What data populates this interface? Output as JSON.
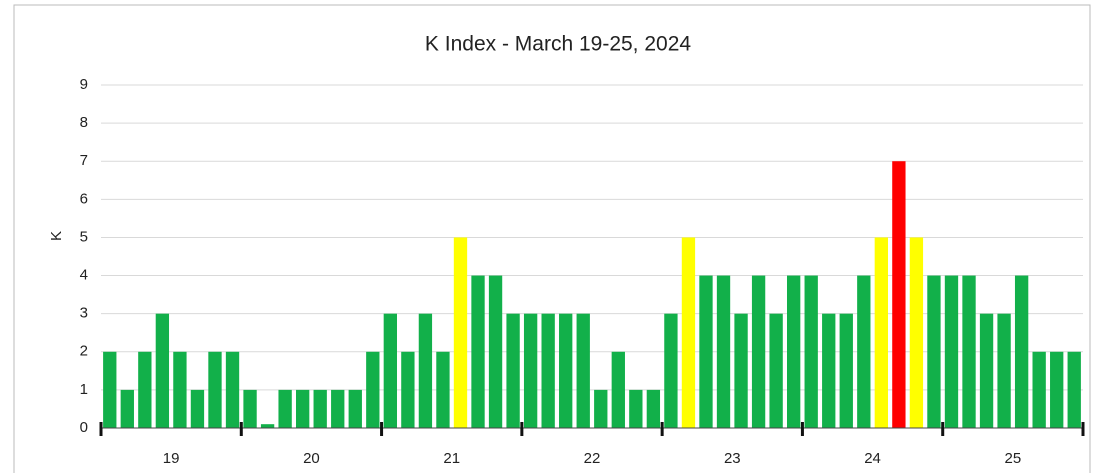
{
  "chart_data": {
    "type": "bar",
    "title": "K Index - March 19-25, 2024",
    "y_label": "K",
    "day_labels": [
      "19",
      "20",
      "21",
      "22",
      "23",
      "24",
      "25"
    ],
    "values": [
      2,
      1,
      2,
      3,
      2,
      1,
      2,
      2,
      1,
      0.1,
      1,
      1,
      1,
      1,
      1,
      2,
      3,
      2,
      3,
      2,
      5,
      4,
      4,
      3,
      3,
      3,
      3,
      3,
      1,
      2,
      1,
      1,
      3,
      5,
      4,
      4,
      3,
      4,
      3,
      4,
      4,
      3,
      3,
      4,
      5,
      7,
      5,
      4,
      4,
      4,
      3,
      3,
      4,
      2,
      2,
      2
    ],
    "colors": [
      "#12b04a",
      "#12b04a",
      "#12b04a",
      "#12b04a",
      "#12b04a",
      "#12b04a",
      "#12b04a",
      "#12b04a",
      "#12b04a",
      "#12b04a",
      "#12b04a",
      "#12b04a",
      "#12b04a",
      "#12b04a",
      "#12b04a",
      "#12b04a",
      "#12b04a",
      "#12b04a",
      "#12b04a",
      "#12b04a",
      "#ffff00",
      "#12b04a",
      "#12b04a",
      "#12b04a",
      "#12b04a",
      "#12b04a",
      "#12b04a",
      "#12b04a",
      "#12b04a",
      "#12b04a",
      "#12b04a",
      "#12b04a",
      "#12b04a",
      "#ffff00",
      "#12b04a",
      "#12b04a",
      "#12b04a",
      "#12b04a",
      "#12b04a",
      "#12b04a",
      "#12b04a",
      "#12b04a",
      "#12b04a",
      "#12b04a",
      "#ffff00",
      "#ff0000",
      "#ffff00",
      "#12b04a",
      "#12b04a",
      "#12b04a",
      "#12b04a",
      "#12b04a",
      "#12b04a",
      "#12b04a",
      "#12b04a",
      "#12b04a"
    ],
    "ylim": [
      0,
      9
    ],
    "yticks": [
      0,
      1,
      2,
      3,
      4,
      5,
      6,
      7,
      8,
      9
    ],
    "grid": true
  }
}
